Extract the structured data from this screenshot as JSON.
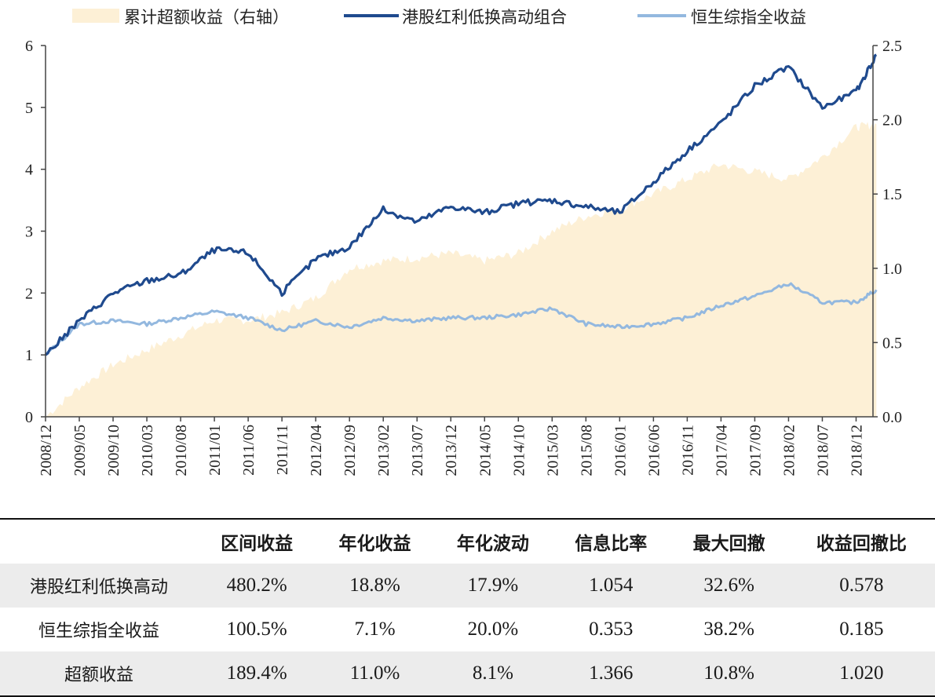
{
  "chart_data": {
    "type": "line",
    "legend": {
      "placement": "top",
      "entries": [
        {
          "key": "excess",
          "label": "累计超额收益（右轴）",
          "kind": "area",
          "color": "#fdf0d6"
        },
        {
          "key": "portfolio",
          "label": "港股红利低换高动组合",
          "kind": "line",
          "color": "#1f4a8e"
        },
        {
          "key": "index",
          "label": "恒生综指全收益",
          "kind": "line",
          "color": "#93b8df"
        }
      ]
    },
    "x_tick_labels": [
      "2008/12",
      "2009/05",
      "2009/10",
      "2010/03",
      "2010/08",
      "2011/01",
      "2011/06",
      "2011/11",
      "2012/04",
      "2012/09",
      "2013/02",
      "2013/07",
      "2013/12",
      "2014/05",
      "2014/10",
      "2015/03",
      "2015/08",
      "2016/01",
      "2016/06",
      "2016/11",
      "2017/04",
      "2017/09",
      "2018/02",
      "2018/07",
      "2018/12"
    ],
    "y_left": {
      "ylim": [
        0,
        6
      ],
      "ticks": [
        "0",
        "1",
        "2",
        "3",
        "4",
        "5",
        "6"
      ]
    },
    "y_right": {
      "ylim": [
        0,
        2.5
      ],
      "ticks": [
        "0.0",
        "0.5",
        "1.0",
        "1.5",
        "2.0",
        "2.5"
      ]
    },
    "series": [
      {
        "key": "portfolio",
        "axis": "left",
        "x": [
          0,
          1,
          2,
          3,
          4,
          5,
          6,
          7,
          8,
          9,
          10,
          11,
          12,
          13,
          14,
          15,
          16,
          17,
          18,
          19,
          20,
          21,
          22,
          23,
          24,
          24.6
        ],
        "values": [
          1.0,
          1.55,
          2.0,
          2.2,
          2.3,
          2.7,
          2.65,
          2.0,
          2.55,
          2.75,
          3.35,
          3.15,
          3.4,
          3.3,
          3.45,
          3.5,
          3.4,
          3.3,
          3.8,
          4.3,
          4.75,
          5.35,
          5.65,
          5.0,
          5.25,
          5.85
        ]
      },
      {
        "key": "index",
        "axis": "left",
        "x": [
          0,
          1,
          2,
          3,
          4,
          5,
          6,
          7,
          8,
          9,
          10,
          11,
          12,
          13,
          14,
          15,
          16,
          17,
          18,
          19,
          20,
          21,
          22,
          23,
          24,
          24.6
        ],
        "values": [
          1.0,
          1.5,
          1.55,
          1.5,
          1.6,
          1.7,
          1.6,
          1.4,
          1.55,
          1.45,
          1.6,
          1.55,
          1.6,
          1.6,
          1.65,
          1.75,
          1.5,
          1.45,
          1.5,
          1.6,
          1.8,
          1.95,
          2.15,
          1.85,
          1.85,
          2.05
        ]
      },
      {
        "key": "excess",
        "axis": "right",
        "x": [
          0,
          1,
          2,
          3,
          4,
          5,
          6,
          7,
          8,
          9,
          10,
          11,
          12,
          13,
          14,
          15,
          16,
          17,
          18,
          19,
          20,
          21,
          22,
          23,
          24,
          24.6
        ],
        "values": [
          0.0,
          0.2,
          0.35,
          0.45,
          0.55,
          0.65,
          0.65,
          0.7,
          0.8,
          1.0,
          1.05,
          1.07,
          1.1,
          1.05,
          1.1,
          1.25,
          1.35,
          1.4,
          1.5,
          1.6,
          1.7,
          1.65,
          1.6,
          1.75,
          1.95,
          1.97
        ]
      }
    ]
  },
  "stats_table": {
    "headers": [
      "",
      "区间收益",
      "年化收益",
      "年化波动",
      "信息比率",
      "最大回撤",
      "收益回撤比"
    ],
    "rows": [
      {
        "name": "港股红利低换高动",
        "values": [
          "480.2%",
          "18.8%",
          "17.9%",
          "1.054",
          "32.6%",
          "0.578"
        ]
      },
      {
        "name": "恒生综指全收益",
        "values": [
          "100.5%",
          "7.1%",
          "20.0%",
          "0.353",
          "38.2%",
          "0.185"
        ]
      },
      {
        "name": "超额收益",
        "values": [
          "189.4%",
          "11.0%",
          "8.1%",
          "1.366",
          "10.8%",
          "1.020"
        ]
      }
    ]
  }
}
